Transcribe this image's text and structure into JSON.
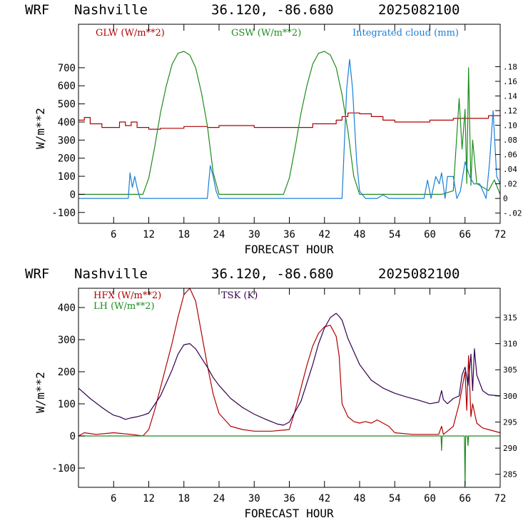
{
  "colors": {
    "red": "#b00000",
    "green": "#1e8c1e",
    "blue": "#1a7fd6",
    "purple": "#300050",
    "frame": "#000000"
  },
  "chart_data": [
    {
      "type": "line",
      "header": {
        "model": "WRF",
        "location": "Nashville",
        "coords": "36.120, -86.680",
        "run": "2025082100"
      },
      "xlabel": "FORECAST HOUR",
      "ylabel": "W/m**2",
      "xlim": [
        0,
        72
      ],
      "xticks": [
        "6",
        "12",
        "18",
        "24",
        "30",
        "36",
        "42",
        "48",
        "54",
        "60",
        "66",
        "72"
      ],
      "ylim": [
        -160,
        940
      ],
      "yticks": [
        "-100",
        "0",
        "100",
        "200",
        "300",
        "400",
        "500",
        "600",
        "700"
      ],
      "y2lim": [
        -0.034,
        0.238
      ],
      "y2ticks": [
        "-.02",
        "0",
        ".02",
        ".04",
        ".06",
        ".08",
        ".10",
        ".12",
        ".14",
        ".16",
        ".18"
      ],
      "series": [
        {
          "name": "GLW (W/m**2)",
          "axis": "left",
          "color": "red",
          "step": true,
          "x": [
            0,
            1,
            2,
            4,
            6,
            7,
            8,
            9,
            10,
            12,
            14,
            18,
            22,
            24,
            30,
            36,
            40,
            44,
            45,
            46,
            48,
            50,
            52,
            54,
            56,
            60,
            64,
            66,
            70,
            72
          ],
          "y": [
            410,
            425,
            390,
            370,
            370,
            400,
            380,
            400,
            370,
            360,
            365,
            375,
            370,
            380,
            370,
            370,
            390,
            410,
            430,
            450,
            445,
            430,
            410,
            400,
            400,
            410,
            420,
            420,
            435,
            440
          ]
        },
        {
          "name": "GSW (W/m**2)",
          "axis": "left",
          "color": "green",
          "x": [
            0,
            11,
            12,
            13,
            14,
            15,
            16,
            17,
            18,
            19,
            20,
            21,
            22,
            23,
            24,
            35,
            36,
            37,
            38,
            39,
            40,
            41,
            42,
            43,
            44,
            45,
            46,
            47,
            48,
            62,
            64,
            65,
            65.5,
            66,
            66.3,
            66.6,
            67,
            67.3,
            68,
            70,
            71,
            72
          ],
          "y": [
            0,
            0,
            90,
            260,
            450,
            600,
            720,
            780,
            790,
            770,
            700,
            560,
            380,
            120,
            0,
            0,
            90,
            260,
            450,
            600,
            720,
            780,
            790,
            770,
            700,
            550,
            350,
            100,
            0,
            0,
            20,
            530,
            250,
            470,
            60,
            700,
            50,
            300,
            60,
            20,
            80,
            0
          ]
        },
        {
          "name": "Integrated cloud (mm)",
          "axis": "right",
          "color": "blue",
          "x": [
            0,
            8.5,
            8.8,
            9.2,
            9.6,
            10,
            10.5,
            22,
            22.5,
            23,
            23.5,
            24,
            45,
            45.8,
            46.3,
            46.8,
            47.5,
            48,
            48.5,
            49,
            51,
            52,
            53,
            59,
            59.6,
            60.2,
            61,
            61.6,
            62,
            62.6,
            63,
            63.6,
            64,
            64.6,
            65.2,
            66,
            66.8,
            67.5,
            68.5,
            69.6,
            70.2,
            70.8,
            71.4,
            72
          ],
          "y": [
            0,
            0,
            0.035,
            0.015,
            0.03,
            0.015,
            0,
            0,
            0.045,
            0.03,
            0.01,
            0,
            0,
            0.15,
            0.19,
            0.15,
            0.05,
            0.01,
            0.005,
            0,
            0,
            0.005,
            0,
            0,
            0.025,
            0,
            0.03,
            0.02,
            0.035,
            0,
            0.03,
            0.03,
            0.03,
            0,
            0.01,
            0.05,
            0.03,
            0.02,
            0.02,
            0,
            0.05,
            0.12,
            0.03,
            0.02
          ]
        }
      ]
    },
    {
      "type": "line",
      "header": {
        "model": "WRF",
        "location": "Nashville",
        "coords": "36.120, -86.680",
        "run": "2025082100"
      },
      "xlabel": "FORECAST HOUR",
      "ylabel": "W/m**2",
      "xlim": [
        0,
        72
      ],
      "xticks": [
        "6",
        "12",
        "18",
        "24",
        "30",
        "36",
        "42",
        "48",
        "54",
        "60",
        "66",
        "72"
      ],
      "ylim": [
        -160,
        460
      ],
      "yticks": [
        "-100",
        "0",
        "100",
        "200",
        "300",
        "400"
      ],
      "y2lim": [
        282.5,
        320.6
      ],
      "y2ticks": [
        "285",
        "290",
        "295",
        "300",
        "305",
        "310",
        "315"
      ],
      "series": [
        {
          "name": "HFX (W/m**2)",
          "axis": "left",
          "color": "red",
          "x": [
            0,
            1,
            3,
            6,
            9,
            11,
            12,
            13,
            14,
            15,
            16,
            17,
            18,
            19,
            20,
            21,
            22,
            23,
            24,
            26,
            28,
            30,
            33,
            36,
            37,
            38,
            39,
            40,
            41,
            42,
            43,
            44,
            44.5,
            45,
            46,
            47,
            48,
            49,
            50,
            51,
            52,
            53,
            54,
            57,
            60,
            61.5,
            62,
            62.3,
            63,
            64,
            65,
            66,
            66.3,
            66.6,
            67,
            67.3,
            68,
            69,
            70,
            72
          ],
          "y": [
            0,
            10,
            5,
            10,
            5,
            0,
            20,
            80,
            150,
            220,
            290,
            370,
            440,
            460,
            420,
            320,
            220,
            130,
            70,
            30,
            20,
            15,
            15,
            20,
            80,
            150,
            220,
            280,
            320,
            340,
            345,
            310,
            250,
            100,
            60,
            45,
            40,
            45,
            40,
            50,
            40,
            30,
            10,
            5,
            5,
            5,
            30,
            5,
            15,
            30,
            100,
            200,
            80,
            250,
            60,
            100,
            40,
            25,
            20,
            10
          ]
        },
        {
          "name": "LH  (W/m**2)",
          "axis": "left",
          "color": "green",
          "x": [
            0,
            61.9,
            62,
            62.1,
            65.9,
            66,
            66.1,
            66.4,
            66.5,
            66.6,
            72
          ],
          "y": [
            0,
            0,
            -45,
            0,
            0,
            -155,
            0,
            0,
            -30,
            0,
            0
          ]
        },
        {
          "name": "TSK (K)",
          "axis": "right",
          "color": "purple",
          "x": [
            0,
            2,
            4,
            5,
            6,
            7,
            8,
            9,
            10,
            11,
            12,
            14,
            16,
            17,
            18,
            19,
            20,
            22,
            23,
            24,
            26,
            28,
            30,
            32,
            34,
            35,
            36,
            38,
            40,
            41,
            42,
            43,
            44,
            44.5,
            45,
            46,
            48,
            50,
            52,
            54,
            56,
            58,
            60,
            61.5,
            62,
            62.3,
            63,
            64,
            65,
            65.5,
            66,
            66.5,
            67,
            67.3,
            67.6,
            68,
            69,
            70,
            72
          ],
          "y": [
            301.5,
            299.5,
            297.8,
            297,
            296.3,
            296,
            295.5,
            295.8,
            296,
            296.3,
            296.7,
            300,
            305,
            308,
            309.8,
            310,
            309,
            305.5,
            303.5,
            302,
            299.5,
            297.8,
            296.5,
            295.5,
            294.6,
            294.4,
            295,
            299,
            306,
            310,
            313,
            315,
            315.8,
            315.2,
            314.5,
            311,
            306,
            303,
            301.5,
            300.5,
            299.8,
            299.2,
            298.5,
            298.8,
            301,
            299.3,
            298.5,
            299.5,
            300,
            304,
            305.5,
            302,
            308,
            301,
            309,
            304,
            301,
            300.2,
            300
          ]
        }
      ]
    }
  ]
}
